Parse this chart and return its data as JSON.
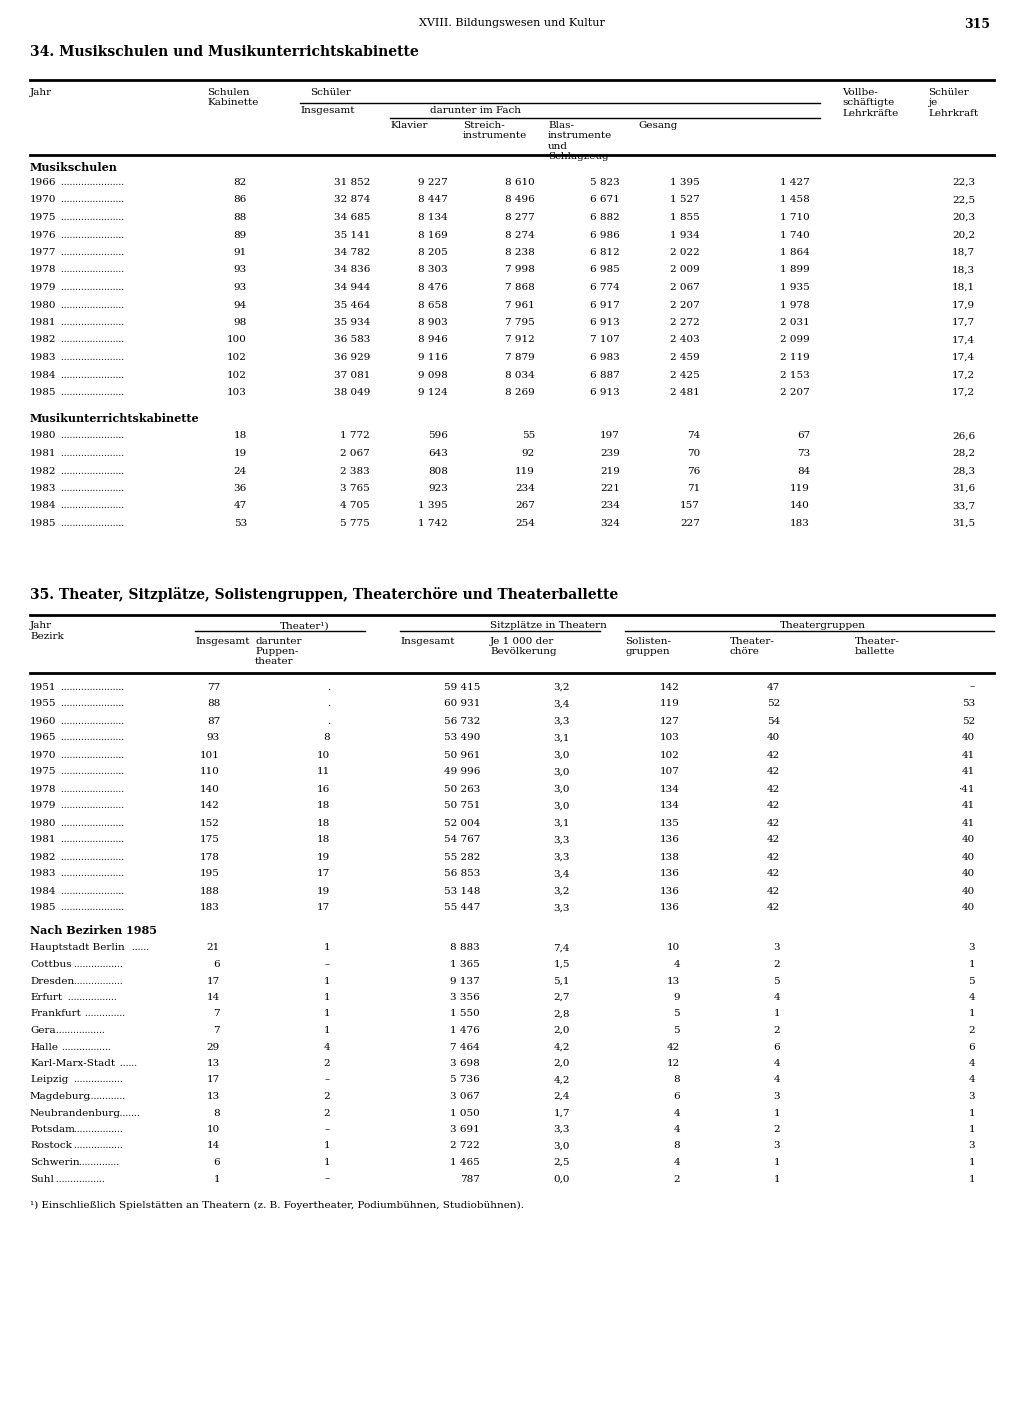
{
  "page_header": "XVIII. Bildungswesen und Kultur",
  "page_number": "315",
  "section34_title": "34. Musikschulen und Musikunterrichtskabinette",
  "section35_title": "35. Theater, Sitzplätze, Solistengruppen, Theaterchöre und Theaterballette",
  "musikschulen": [
    [
      "1966",
      "82",
      "31 852",
      "9 227",
      "8 610",
      "5 823",
      "1 395",
      "1 427",
      "22,3"
    ],
    [
      "1970",
      "86",
      "32 874",
      "8 447",
      "8 496",
      "6 671",
      "1 527",
      "1 458",
      "22,5"
    ],
    [
      "1975",
      "88",
      "34 685",
      "8 134",
      "8 277",
      "6 882",
      "1 855",
      "1 710",
      "20,3"
    ],
    [
      "1976",
      "89",
      "35 141",
      "8 169",
      "8 274",
      "6 986",
      "1 934",
      "1 740",
      "20,2"
    ],
    [
      "1977",
      "91",
      "34 782",
      "8 205",
      "8 238",
      "6 812",
      "2 022",
      "1 864",
      "18,7"
    ],
    [
      "1978",
      "93",
      "34 836",
      "8 303",
      "7 998",
      "6 985",
      "2 009",
      "1 899",
      "18,3"
    ],
    [
      "1979",
      "93",
      "34 944",
      "8 476",
      "7 868",
      "6 774",
      "2 067",
      "1 935",
      "18,1"
    ],
    [
      "1980",
      "94",
      "35 464",
      "8 658",
      "7 961",
      "6 917",
      "2 207",
      "1 978",
      "17,9"
    ],
    [
      "1981",
      "98",
      "35 934",
      "8 903",
      "7 795",
      "6 913",
      "2 272",
      "2 031",
      "17,7"
    ],
    [
      "1982",
      "100",
      "36 583",
      "8 946",
      "7 912",
      "7 107",
      "2 403",
      "2 099",
      "17,4"
    ],
    [
      "1983",
      "102",
      "36 929",
      "9 116",
      "7 879",
      "6 983",
      "2 459",
      "2 119",
      "17,4"
    ],
    [
      "1984",
      "102",
      "37 081",
      "9 098",
      "8 034",
      "6 887",
      "2 425",
      "2 153",
      "17,2"
    ],
    [
      "1985",
      "103",
      "38 049",
      "9 124",
      "8 269",
      "6 913",
      "2 481",
      "2 207",
      "17,2"
    ]
  ],
  "musikunterricht_label": "Musikunterrichtskabinette",
  "musikunterricht": [
    [
      "1980",
      "18",
      "1 772",
      "596",
      "55",
      "197",
      "74",
      "67",
      "26,6"
    ],
    [
      "1981",
      "19",
      "2 067",
      "643",
      "92",
      "239",
      "70",
      "73",
      "28,2"
    ],
    [
      "1982",
      "24",
      "2 383",
      "808",
      "119",
      "219",
      "76",
      "84",
      "28,3"
    ],
    [
      "1983",
      "36",
      "3 765",
      "923",
      "234",
      "221",
      "71",
      "119",
      "31,6"
    ],
    [
      "1984",
      "47",
      "4 705",
      "1 395",
      "267",
      "234",
      "157",
      "140",
      "33,7"
    ],
    [
      "1985",
      "53",
      "5 775",
      "1 742",
      "254",
      "324",
      "227",
      "183",
      "31,5"
    ]
  ],
  "theater_years": [
    [
      "1951",
      "77",
      ".",
      "59 415",
      "3,2",
      "142",
      "47",
      "–"
    ],
    [
      "1955",
      "88",
      ".",
      "60 931",
      "3,4",
      "119",
      "52",
      "53"
    ],
    [
      "1960",
      "87",
      ".",
      "56 732",
      "3,3",
      "127",
      "54",
      "52"
    ],
    [
      "1965",
      "93",
      "8",
      "53 490",
      "3,1",
      "103",
      "40",
      "40"
    ],
    [
      "1970",
      "101",
      "10",
      "50 961",
      "3,0",
      "102",
      "42",
      "41"
    ],
    [
      "1975",
      "110",
      "11",
      "49 996",
      "3,0",
      "107",
      "42",
      "41"
    ],
    [
      "1978",
      "140",
      "16",
      "50 263",
      "3,0",
      "134",
      "42",
      "·41"
    ],
    [
      "1979",
      "142",
      "18",
      "50 751",
      "3,0",
      "134",
      "42",
      "41"
    ],
    [
      "1980",
      "152",
      "18",
      "52 004",
      "3,1",
      "135",
      "42",
      "41"
    ],
    [
      "1981",
      "175",
      "18",
      "54 767",
      "3,3",
      "136",
      "42",
      "40"
    ],
    [
      "1982",
      "178",
      "19",
      "55 282",
      "3,3",
      "138",
      "42",
      "40"
    ],
    [
      "1983",
      "195",
      "17",
      "56 853",
      "3,4",
      "136",
      "42",
      "40"
    ],
    [
      "1984",
      "188",
      "19",
      "53 148",
      "3,2",
      "136",
      "42",
      "40"
    ],
    [
      "1985",
      "183",
      "17",
      "55 447",
      "3,3",
      "136",
      "42",
      "40"
    ]
  ],
  "bezirk_label": "Nach Bezirken 1985",
  "theater_bezirke": [
    [
      "Hauptstadt Berlin",
      "21",
      "1",
      "8 883",
      "7,4",
      "10",
      "3",
      "3"
    ],
    [
      "Cottbus",
      "6",
      "–",
      "1 365",
      "1,5",
      "4",
      "2",
      "1"
    ],
    [
      "Dresden",
      "17",
      "1",
      "9 137",
      "5,1",
      "13",
      "5",
      "5"
    ],
    [
      "Erfurt",
      "14",
      "1",
      "3 356",
      "2,7",
      "9",
      "4",
      "4"
    ],
    [
      "Frankfurt",
      "7",
      "1",
      "1 550",
      "2,8",
      "5",
      "1",
      "1"
    ],
    [
      "Gera",
      "7",
      "1",
      "1 476",
      "2,0",
      "5",
      "2",
      "2"
    ],
    [
      "Halle",
      "29",
      "4",
      "7 464",
      "4,2",
      "42",
      "6",
      "6"
    ],
    [
      "Karl-Marx-Stadt",
      "13",
      "2",
      "3 698",
      "2,0",
      "12",
      "4",
      "4"
    ],
    [
      "Leipzig",
      "17",
      "–",
      "5 736",
      "4,2",
      "8",
      "4",
      "4"
    ],
    [
      "Magdeburg",
      "13",
      "2",
      "3 067",
      "2,4",
      "6",
      "3",
      "3"
    ],
    [
      "Neubrandenburg",
      "8",
      "2",
      "1 050",
      "1,7",
      "4",
      "1",
      "1"
    ],
    [
      "Potsdam",
      "10",
      "–",
      "3 691",
      "3,3",
      "4",
      "2",
      "1"
    ],
    [
      "Rostock",
      "14",
      "1",
      "2 722",
      "3,0",
      "8",
      "3",
      "3"
    ],
    [
      "Schwerin",
      "6",
      "1",
      "1 465",
      "2,5",
      "4",
      "1",
      "1"
    ],
    [
      "Suhl",
      "1",
      "–",
      "787",
      "0,0",
      "2",
      "1",
      "1"
    ]
  ],
  "footnote": "¹) Einschließlich Spielstätten an Theatern (z. B. Foyertheater, Podiumbühnen, Studiobühnen)."
}
